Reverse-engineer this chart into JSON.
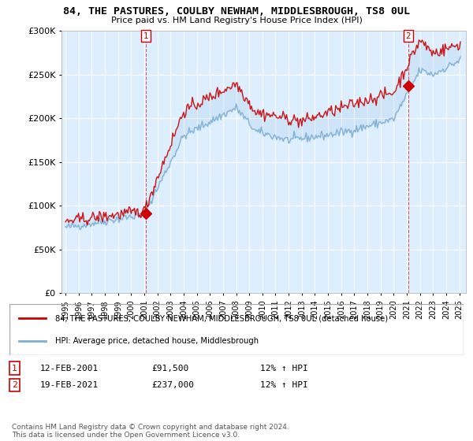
{
  "title": "84, THE PASTURES, COULBY NEWHAM, MIDDLESBROUGH, TS8 0UL",
  "subtitle": "Price paid vs. HM Land Registry's House Price Index (HPI)",
  "legend_line1": "84, THE PASTURES, COULBY NEWHAM, MIDDLESBROUGH, TS8 0UL (detached house)",
  "legend_line2": "HPI: Average price, detached house, Middlesbrough",
  "annotation1_date": "12-FEB-2001",
  "annotation1_price": "£91,500",
  "annotation1_hpi": "12% ↑ HPI",
  "annotation2_date": "19-FEB-2021",
  "annotation2_price": "£237,000",
  "annotation2_hpi": "12% ↑ HPI",
  "footer": "Contains HM Land Registry data © Crown copyright and database right 2024.\nThis data is licensed under the Open Government Licence v3.0.",
  "red_color": "#cc0000",
  "blue_color": "#7aafd4",
  "bg_color": "#ddeeff",
  "sale1_year": 2001.12,
  "sale1_value": 91500,
  "sale2_year": 2021.12,
  "sale2_value": 237000,
  "ylim": [
    0,
    300000
  ],
  "xlim_start": 1994.7,
  "xlim_end": 2025.5
}
